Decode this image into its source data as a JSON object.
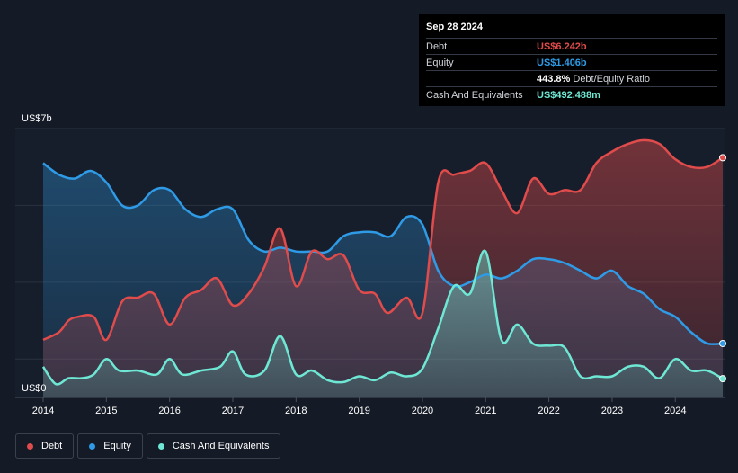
{
  "chart_data": {
    "type": "area",
    "title": "",
    "xlabel": "",
    "ylabel": "",
    "y_unit_top_label": "US$7b",
    "y_unit_bottom_label": "US$0",
    "ylim": [
      0,
      7
    ],
    "xlim": [
      2014,
      2024.75
    ],
    "x_ticks": [
      "2014",
      "2015",
      "2016",
      "2017",
      "2018",
      "2019",
      "2020",
      "2021",
      "2022",
      "2023",
      "2024"
    ],
    "grid": true,
    "legend_position": "bottom-left",
    "series": [
      {
        "name": "Debt",
        "color": "#e04b4b",
        "x": [
          2014.0,
          2014.25,
          2014.4,
          2014.55,
          2014.8,
          2015.0,
          2015.25,
          2015.5,
          2015.75,
          2016.0,
          2016.25,
          2016.5,
          2016.75,
          2017.0,
          2017.25,
          2017.5,
          2017.75,
          2018.0,
          2018.25,
          2018.5,
          2018.75,
          2019.0,
          2019.25,
          2019.45,
          2019.75,
          2020.0,
          2020.25,
          2020.5,
          2020.75,
          2021.0,
          2021.25,
          2021.5,
          2021.75,
          2022.0,
          2022.25,
          2022.5,
          2022.75,
          2023.0,
          2023.25,
          2023.5,
          2023.75,
          2024.0,
          2024.25,
          2024.5,
          2024.75
        ],
        "values": [
          1.5,
          1.7,
          2.0,
          2.1,
          2.1,
          1.5,
          2.5,
          2.6,
          2.7,
          1.9,
          2.6,
          2.8,
          3.1,
          2.4,
          2.7,
          3.4,
          4.4,
          2.9,
          3.8,
          3.6,
          3.7,
          2.8,
          2.7,
          2.2,
          2.6,
          2.2,
          5.6,
          5.8,
          5.9,
          6.1,
          5.4,
          4.8,
          5.7,
          5.3,
          5.4,
          5.4,
          6.1,
          6.4,
          6.6,
          6.7,
          6.6,
          6.2,
          6.0,
          6.0,
          6.242
        ]
      },
      {
        "name": "Equity",
        "color": "#2f9be6",
        "x": [
          2014.0,
          2014.25,
          2014.5,
          2014.75,
          2015.0,
          2015.25,
          2015.5,
          2015.75,
          2016.0,
          2016.25,
          2016.5,
          2016.75,
          2017.0,
          2017.25,
          2017.5,
          2017.75,
          2018.0,
          2018.25,
          2018.5,
          2018.75,
          2019.0,
          2019.25,
          2019.5,
          2019.75,
          2020.0,
          2020.25,
          2020.5,
          2020.75,
          2021.0,
          2021.25,
          2021.5,
          2021.75,
          2022.0,
          2022.25,
          2022.5,
          2022.75,
          2023.0,
          2023.25,
          2023.5,
          2023.75,
          2024.0,
          2024.25,
          2024.5,
          2024.75
        ],
        "values": [
          6.1,
          5.8,
          5.7,
          5.9,
          5.6,
          5.0,
          5.0,
          5.4,
          5.4,
          4.9,
          4.7,
          4.9,
          4.9,
          4.1,
          3.8,
          3.9,
          3.8,
          3.8,
          3.8,
          4.2,
          4.3,
          4.3,
          4.2,
          4.7,
          4.5,
          3.3,
          2.9,
          3.0,
          3.2,
          3.1,
          3.3,
          3.6,
          3.6,
          3.5,
          3.3,
          3.1,
          3.3,
          2.9,
          2.7,
          2.3,
          2.1,
          1.7,
          1.41,
          1.406
        ]
      },
      {
        "name": "Cash And Equivalents",
        "color": "#6ee8d4",
        "x": [
          2014.0,
          2014.2,
          2014.4,
          2014.6,
          2014.8,
          2015.0,
          2015.2,
          2015.5,
          2015.8,
          2016.0,
          2016.2,
          2016.5,
          2016.8,
          2017.0,
          2017.2,
          2017.5,
          2017.75,
          2018.0,
          2018.25,
          2018.5,
          2018.75,
          2019.0,
          2019.25,
          2019.5,
          2019.75,
          2020.0,
          2020.25,
          2020.5,
          2020.75,
          2021.0,
          2021.25,
          2021.5,
          2021.75,
          2022.0,
          2022.25,
          2022.5,
          2022.75,
          2023.0,
          2023.25,
          2023.5,
          2023.75,
          2024.0,
          2024.25,
          2024.5,
          2024.75
        ],
        "values": [
          0.8,
          0.35,
          0.5,
          0.5,
          0.6,
          1.0,
          0.7,
          0.7,
          0.6,
          1.0,
          0.6,
          0.7,
          0.8,
          1.2,
          0.6,
          0.7,
          1.6,
          0.6,
          0.7,
          0.45,
          0.4,
          0.55,
          0.45,
          0.65,
          0.55,
          0.75,
          1.8,
          2.9,
          2.7,
          3.8,
          1.5,
          1.9,
          1.4,
          1.35,
          1.3,
          0.55,
          0.55,
          0.55,
          0.8,
          0.8,
          0.5,
          1.0,
          0.7,
          0.7,
          0.49
        ]
      }
    ]
  },
  "tooltip": {
    "date": "Sep 28 2024",
    "rows": [
      {
        "label": "Debt",
        "value": "US$6.242b",
        "color": "#e04b4b"
      },
      {
        "label": "Equity",
        "value": "US$1.406b",
        "color": "#2f9be6"
      },
      {
        "label": "",
        "value": "443.8%",
        "suffix": "Debt/Equity Ratio"
      },
      {
        "label": "Cash And Equivalents",
        "value": "US$492.488m",
        "color": "#6ee8d4"
      }
    ]
  },
  "legend": [
    {
      "label": "Debt",
      "color": "#e04b4b"
    },
    {
      "label": "Equity",
      "color": "#2f9be6"
    },
    {
      "label": "Cash And Equivalents",
      "color": "#6ee8d4"
    }
  ]
}
